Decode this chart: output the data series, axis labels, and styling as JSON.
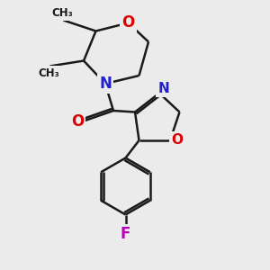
{
  "background_color": "#ebebeb",
  "bond_color": "#1a1a1a",
  "N_color": "#2222cc",
  "O_color": "#dd0000",
  "F_color": "#bb00bb",
  "lw": 1.8,
  "figsize": [
    3.0,
    3.0
  ],
  "dpi": 100,
  "xlim": [
    0,
    10
  ],
  "ylim": [
    0,
    10
  ]
}
